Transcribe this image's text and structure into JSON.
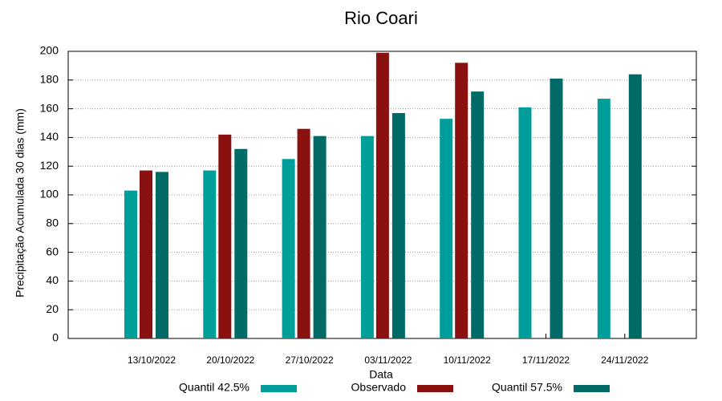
{
  "chart_data": {
    "type": "bar",
    "title": "Rio Coari",
    "xlabel": "Data",
    "ylabel": "Precipitação Acumulada 30 dias (mm)",
    "categories": [
      "13/10/2022",
      "20/10/2022",
      "27/10/2022",
      "03/11/2022",
      "10/11/2022",
      "17/11/2022",
      "24/11/2022"
    ],
    "series": [
      {
        "name": "Quantil 42.5%",
        "color": "#009e9a",
        "values": [
          103,
          117,
          125,
          141,
          153,
          161,
          167
        ]
      },
      {
        "name": "Observado",
        "color": "#8b1010",
        "values": [
          117,
          142,
          146,
          199,
          192,
          null,
          null
        ]
      },
      {
        "name": "Quantil 57.5%",
        "color": "#006b66",
        "values": [
          116,
          132,
          141,
          157,
          172,
          181,
          184
        ]
      }
    ],
    "ylim": [
      0,
      200
    ],
    "yticks": [
      0,
      20,
      40,
      60,
      80,
      100,
      120,
      140,
      160,
      180,
      200
    ],
    "grid": true,
    "legend": "bottom"
  }
}
